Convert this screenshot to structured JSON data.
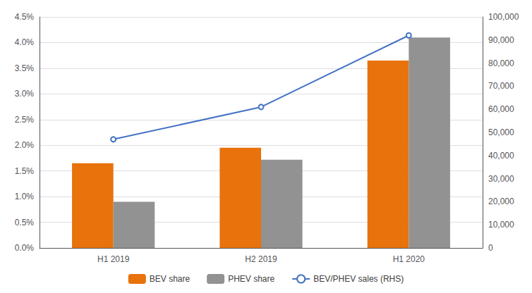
{
  "chart_data": {
    "type": "bar",
    "categories": [
      "H1 2019",
      "H2 2019",
      "H1 2020"
    ],
    "series": [
      {
        "name": "BEV share",
        "type": "bar",
        "color": "#E8720C",
        "values": [
          0.0165,
          0.0195,
          0.0365
        ]
      },
      {
        "name": "PHEV share",
        "type": "bar",
        "color": "#929292",
        "values": [
          0.009,
          0.0172,
          0.041
        ]
      },
      {
        "name": "BEV/PHEV sales (RHS)",
        "type": "line",
        "color": "#4472C4",
        "marker": "circle",
        "axis": "y2",
        "values": [
          47000,
          61000,
          92000
        ]
      }
    ],
    "ylim": [
      0,
      0.045
    ],
    "yticks": [
      {
        "value": 0.0,
        "label": "0.0%"
      },
      {
        "value": 0.005,
        "label": "0.5%"
      },
      {
        "value": 0.01,
        "label": "1.0%"
      },
      {
        "value": 0.015,
        "label": "1.5%"
      },
      {
        "value": 0.02,
        "label": "2.0%"
      },
      {
        "value": 0.025,
        "label": "2.5%"
      },
      {
        "value": 0.03,
        "label": "3.0%"
      },
      {
        "value": 0.035,
        "label": "3.5%"
      },
      {
        "value": 0.04,
        "label": "4.0%"
      },
      {
        "value": 0.045,
        "label": "4.5%"
      }
    ],
    "y2lim": [
      0,
      100000
    ],
    "y2ticks": [
      0,
      {
        "value": 10000,
        "label": "10,000"
      },
      {
        "value": 20000,
        "label": "20,000"
      },
      {
        "value": 30000,
        "label": "30,000"
      },
      {
        "value": 40000,
        "label": "40,000"
      },
      {
        "value": 50000,
        "label": "50,000"
      },
      {
        "value": 60000,
        "label": "60,000"
      },
      {
        "value": 70000,
        "label": "70,000"
      },
      {
        "value": 80000,
        "label": "80,000"
      },
      {
        "value": 90000,
        "label": "90,000"
      },
      {
        "value": 100000,
        "label": "100,000"
      }
    ],
    "grid": true,
    "legend": "bottom"
  }
}
